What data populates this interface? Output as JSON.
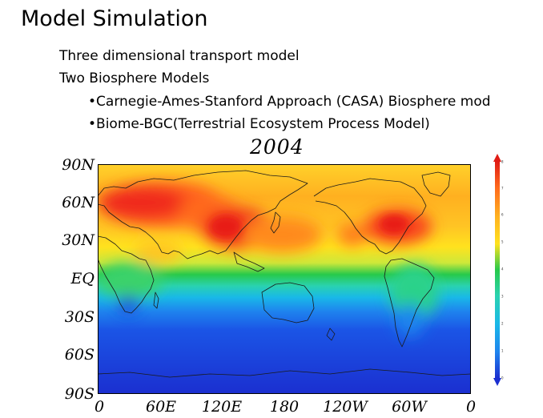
{
  "slide": {
    "title": "Model Simulation",
    "bullets": [
      "Three dimensional transport model",
      "Two Biosphere Models"
    ],
    "sub_bullets": [
      "•Carnegie-Ames-Stanford Approach (CASA) Biosphere mod",
      "•Biome-BGC(Terrestrial Ecosystem Process Model)"
    ]
  },
  "map": {
    "title": "2004",
    "y_ticks": [
      "90N",
      "60N",
      "30N",
      "EQ",
      "30S",
      "60S",
      "90S"
    ],
    "x_ticks": [
      "0",
      "60E",
      "120E",
      "180",
      "120W",
      "60W",
      "0"
    ],
    "colorbar_ticks": [
      "8",
      "7",
      "6",
      "5",
      "4",
      "3",
      "2",
      "1",
      "0"
    ],
    "colors": {
      "red": "#f02a1c",
      "orange": "#ff8a1e",
      "yellow": "#ffe21e",
      "green": "#27c94a",
      "cyan": "#19b8e8",
      "blue": "#1b55e6",
      "navy": "#1b2fd0"
    }
  }
}
